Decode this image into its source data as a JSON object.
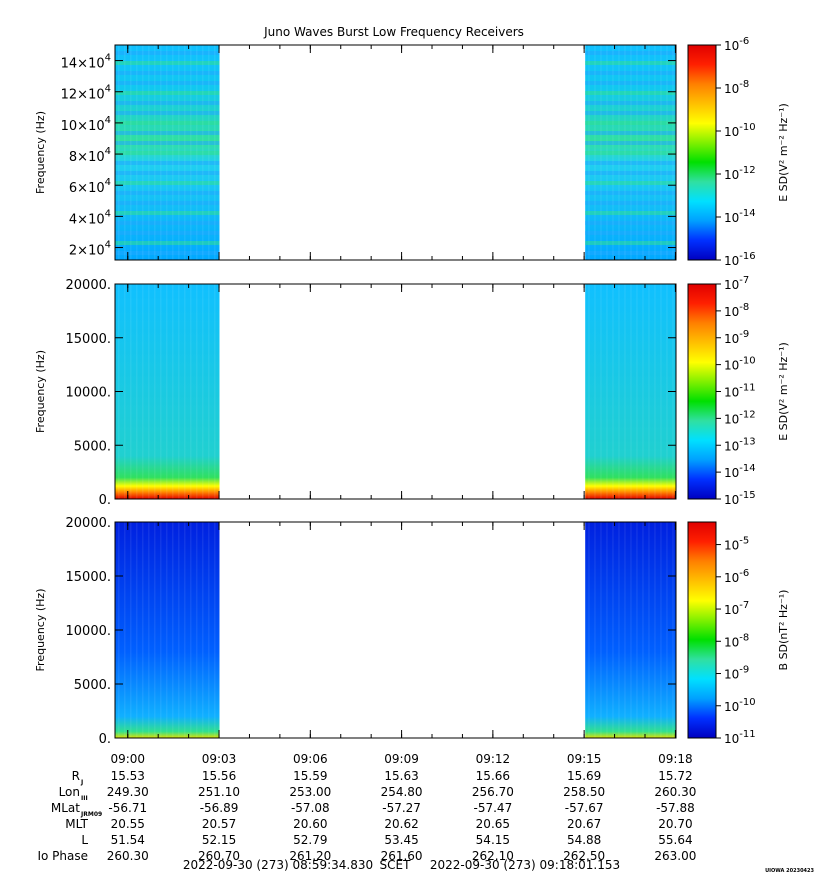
{
  "page": {
    "title": "Juno Waves Burst Low Frequency Receivers",
    "credit": "UIOWA 20230423",
    "time_range": {
      "start": "2022-09-30 (273) 08:59:34.830",
      "scet_label": "SCET",
      "end": "2022-09-30 (273) 09:18:01.153"
    }
  },
  "colors": {
    "background": "#ffffff",
    "no_data": "#ffffff",
    "colormap": [
      "#0000c0",
      "#0030ff",
      "#00a0ff",
      "#00e0ff",
      "#30e0a0",
      "#00e000",
      "#80f000",
      "#ffff00",
      "#ffc000",
      "#ff8000",
      "#ff2000",
      "#e00000"
    ]
  },
  "chart_data": [
    {
      "type": "heatmap",
      "name": "panel-1",
      "ylabel": "Frequency (Hz)",
      "ylim": [
        12000,
        150000
      ],
      "yticks": [
        {
          "value": 20000,
          "mant": "2",
          "exp": "4"
        },
        {
          "value": 40000,
          "mant": "4",
          "exp": "4"
        },
        {
          "value": 60000,
          "mant": "6",
          "exp": "4"
        },
        {
          "value": 80000,
          "mant": "8",
          "exp": "4"
        },
        {
          "value": 100000,
          "mant": "10",
          "exp": "4"
        },
        {
          "value": 120000,
          "mant": "12",
          "exp": "4"
        },
        {
          "value": 140000,
          "mant": "14",
          "exp": "4"
        }
      ],
      "data_intervals": [
        [
          "08:59:34",
          "09:03:01"
        ],
        [
          "09:15:02",
          "09:18:01"
        ]
      ],
      "colorbar": {
        "label": "E SD(V² m⁻² Hz⁻¹)",
        "scale": "log",
        "range": [
          -16,
          -6
        ],
        "ticks": [
          {
            "exp": "-6",
            "value": -6
          },
          {
            "exp": "-8",
            "value": -8
          },
          {
            "exp": "-10",
            "value": -10
          },
          {
            "exp": "-12",
            "value": -12
          },
          {
            "exp": "-14",
            "value": -14
          },
          {
            "exp": "-16",
            "value": -16
          }
        ]
      }
    },
    {
      "type": "heatmap",
      "name": "panel-2",
      "ylabel": "Frequency (Hz)",
      "ylim": [
        0,
        20000
      ],
      "yticks": [
        {
          "value": 0,
          "label": "0."
        },
        {
          "value": 5000,
          "label": "5000."
        },
        {
          "value": 10000,
          "label": "10000."
        },
        {
          "value": 15000,
          "label": "15000."
        },
        {
          "value": 20000,
          "label": "20000."
        }
      ],
      "data_intervals": [
        [
          "08:59:34",
          "09:03:01"
        ],
        [
          "09:15:02",
          "09:18:01"
        ]
      ],
      "colorbar": {
        "label": "E SD(V² m⁻² Hz⁻¹)",
        "scale": "log",
        "range": [
          -15,
          -7
        ],
        "ticks": [
          {
            "exp": "-7",
            "value": -7
          },
          {
            "exp": "-8",
            "value": -8
          },
          {
            "exp": "-9",
            "value": -9
          },
          {
            "exp": "-10",
            "value": -10
          },
          {
            "exp": "-11",
            "value": -11
          },
          {
            "exp": "-12",
            "value": -12
          },
          {
            "exp": "-13",
            "value": -13
          },
          {
            "exp": "-14",
            "value": -14
          },
          {
            "exp": "-15",
            "value": -15
          }
        ]
      }
    },
    {
      "type": "heatmap",
      "name": "panel-3",
      "ylabel": "Frequency (Hz)",
      "ylim": [
        0,
        20000
      ],
      "yticks": [
        {
          "value": 0,
          "label": "0."
        },
        {
          "value": 5000,
          "label": "5000."
        },
        {
          "value": 10000,
          "label": "10000."
        },
        {
          "value": 15000,
          "label": "15000."
        },
        {
          "value": 20000,
          "label": "20000."
        }
      ],
      "data_intervals": [
        [
          "08:59:34",
          "09:03:01"
        ],
        [
          "09:15:02",
          "09:18:01"
        ]
      ],
      "colorbar": {
        "label": "B SD(nT² Hz⁻¹)",
        "scale": "log",
        "range": [
          -11,
          -4.3
        ],
        "ticks": [
          {
            "exp": "-5",
            "value": -5
          },
          {
            "exp": "-6",
            "value": -6
          },
          {
            "exp": "-7",
            "value": -7
          },
          {
            "exp": "-8",
            "value": -8
          },
          {
            "exp": "-9",
            "value": -9
          },
          {
            "exp": "-10",
            "value": -10
          },
          {
            "exp": "-11",
            "value": -11
          }
        ]
      }
    }
  ],
  "time_axis": {
    "xlim": [
      "08:59:34.830",
      "09:18:01.153"
    ],
    "ticks": [
      "09:00",
      "09:03",
      "09:06",
      "09:09",
      "09:12",
      "09:15",
      "09:18"
    ]
  },
  "ephemeris": {
    "rows": [
      {
        "label": "R",
        "sub": "J",
        "values": [
          "15.53",
          "15.56",
          "15.59",
          "15.63",
          "15.66",
          "15.69",
          "15.72"
        ]
      },
      {
        "label": "Lon",
        "sub": "III",
        "values": [
          "249.30",
          "251.10",
          "253.00",
          "254.80",
          "256.70",
          "258.50",
          "260.30"
        ]
      },
      {
        "label": "MLat",
        "sub": "JRM09",
        "values": [
          "-56.71",
          "-56.89",
          "-57.08",
          "-57.27",
          "-57.47",
          "-57.67",
          "-57.88"
        ]
      },
      {
        "label": "MLT",
        "sub": "",
        "values": [
          "20.55",
          "20.57",
          "20.60",
          "20.62",
          "20.65",
          "20.67",
          "20.70"
        ]
      },
      {
        "label": "L",
        "sub": "",
        "values": [
          "51.54",
          "52.15",
          "52.79",
          "53.45",
          "54.15",
          "54.88",
          "55.64"
        ]
      },
      {
        "label": "Io Phase",
        "sub": "",
        "values": [
          "260.30",
          "260.70",
          "261.20",
          "261.60",
          "262.10",
          "262.50",
          "263.00"
        ]
      }
    ]
  }
}
